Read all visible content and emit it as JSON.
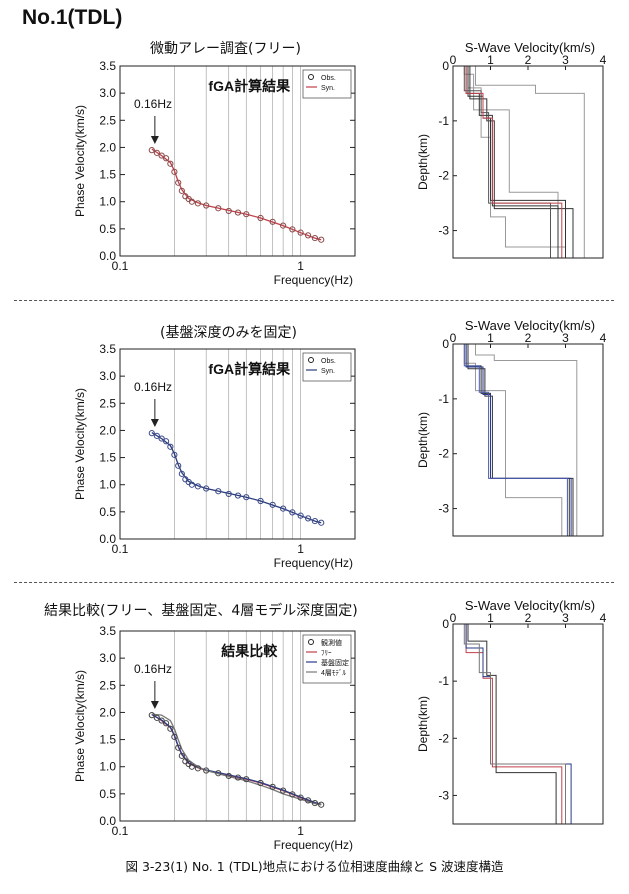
{
  "page": {
    "title": "No.1(TDL)",
    "section_titles": [
      "微動アレー調査(フリー)",
      "(基盤深度のみを固定)",
      "結果比較(フリー、基盤固定、4層モデル深度固定)"
    ],
    "caption": "図 3-23(1) No. 1 (TDL)地点における位相速度曲線と S 波速度構造"
  },
  "chart_data": [
    {
      "type": "scatter",
      "title": "fGA計算結果",
      "xlabel": "Frequency(Hz)",
      "ylabel": "Phase Velocity(km/s)",
      "xscale": "log",
      "xlim": [
        0.1,
        2
      ],
      "ylim": [
        0,
        3.5
      ],
      "xticks": [
        "0.1",
        "1"
      ],
      "yticks": [
        "0.0",
        "0.5",
        "1.0",
        "1.5",
        "2.0",
        "2.5",
        "3.0",
        "3.5"
      ],
      "grid": "vertical",
      "legend": {
        "position": "top-right",
        "entries": [
          "Obs.",
          "Syn."
        ]
      },
      "annotation": {
        "text": "0.16Hz",
        "x": 0.16
      },
      "series": [
        {
          "name": "Obs.",
          "style": "circle",
          "color": "#8a4a4a",
          "x": [
            0.15,
            0.16,
            0.17,
            0.18,
            0.19,
            0.2,
            0.21,
            0.22,
            0.23,
            0.24,
            0.25,
            0.27,
            0.3,
            0.35,
            0.4,
            0.45,
            0.5,
            0.6,
            0.7,
            0.8,
            0.9,
            1.0,
            1.1,
            1.2,
            1.3
          ],
          "y": [
            1.95,
            1.9,
            1.85,
            1.8,
            1.7,
            1.55,
            1.35,
            1.2,
            1.1,
            1.05,
            1.0,
            0.97,
            0.93,
            0.88,
            0.83,
            0.8,
            0.77,
            0.7,
            0.63,
            0.56,
            0.49,
            0.43,
            0.38,
            0.33,
            0.3
          ]
        },
        {
          "name": "Syn.",
          "style": "line",
          "color": "#c0404a",
          "x": [
            0.15,
            0.17,
            0.19,
            0.2,
            0.21,
            0.22,
            0.24,
            0.27,
            0.3,
            0.4,
            0.5,
            0.6,
            0.8,
            1.0,
            1.2,
            1.3
          ],
          "y": [
            1.97,
            1.85,
            1.72,
            1.57,
            1.37,
            1.22,
            1.06,
            0.98,
            0.93,
            0.84,
            0.77,
            0.7,
            0.56,
            0.43,
            0.33,
            0.3
          ]
        }
      ]
    },
    {
      "type": "line",
      "title": "S-Wave Velocity(km/s)",
      "ylabel": "Depth(km)",
      "xlim": [
        0,
        4
      ],
      "ylim": [
        -3.5,
        0
      ],
      "xticks": [
        "0",
        "1",
        "2",
        "3",
        "4"
      ],
      "yticks": [
        "0",
        "-1",
        "-2",
        "-3"
      ],
      "series": [
        {
          "color": "#999999",
          "x": [
            0.4,
            0.4,
            0.75,
            0.75,
            1.0,
            1.0,
            1.4,
            1.4,
            3.0,
            3.0
          ],
          "y": [
            0,
            -0.4,
            -0.4,
            -1.3,
            -1.3,
            -2.75,
            -2.75,
            -3.3,
            -3.3,
            -3.5
          ]
        },
        {
          "color": "#999999",
          "x": [
            0.6,
            0.6,
            2.2,
            2.2,
            3.5,
            3.5
          ],
          "y": [
            0,
            -0.35,
            -0.35,
            -0.5,
            -0.5,
            -3.5
          ]
        },
        {
          "color": "#999999",
          "x": [
            0.3,
            0.3,
            0.55,
            0.55,
            1.5,
            1.5,
            2.8,
            2.8
          ],
          "y": [
            0,
            -0.15,
            -0.15,
            -0.8,
            -0.8,
            -2.3,
            -2.3,
            -3.5
          ]
        },
        {
          "color": "#333333",
          "x": [
            0.35,
            0.35,
            0.7,
            0.7,
            1.05,
            1.05,
            2.8,
            2.8
          ],
          "y": [
            0,
            -0.5,
            -0.5,
            -0.9,
            -0.9,
            -2.55,
            -2.55,
            -3.5
          ]
        },
        {
          "color": "#333333",
          "x": [
            0.4,
            0.4,
            0.8,
            0.8,
            1.0,
            1.0,
            3.0,
            3.0
          ],
          "y": [
            0,
            -0.55,
            -0.55,
            -0.95,
            -0.95,
            -2.45,
            -2.45,
            -3.5
          ]
        },
        {
          "color": "#333333",
          "x": [
            0.45,
            0.45,
            0.9,
            0.9,
            1.1,
            1.1,
            3.2,
            3.2
          ],
          "y": [
            0,
            -0.6,
            -0.6,
            -1.0,
            -1.0,
            -2.6,
            -2.6,
            -3.5
          ]
        },
        {
          "color": "#555555",
          "x": [
            0.3,
            0.3,
            0.75,
            0.75,
            0.95,
            0.95,
            2.6,
            2.6
          ],
          "y": [
            0,
            -0.45,
            -0.45,
            -0.85,
            -0.85,
            -2.5,
            -2.5,
            -3.5
          ]
        },
        {
          "color": "#c0404a",
          "x": [
            0.35,
            0.35,
            0.8,
            0.8,
            1.05,
            1.05,
            2.9,
            2.9
          ],
          "y": [
            0,
            -0.5,
            -0.5,
            -0.95,
            -0.95,
            -2.5,
            -2.5,
            -3.5
          ]
        }
      ]
    },
    {
      "type": "scatter",
      "title": "fGA計算結果",
      "xlabel": "Frequency(Hz)",
      "ylabel": "Phase Velocity(km/s)",
      "xscale": "log",
      "xlim": [
        0.1,
        2
      ],
      "ylim": [
        0,
        3.5
      ],
      "xticks": [
        "0.1",
        "1"
      ],
      "yticks": [
        "0.0",
        "0.5",
        "1.0",
        "1.5",
        "2.0",
        "2.5",
        "3.0",
        "3.5"
      ],
      "grid": "vertical",
      "legend": {
        "position": "top-right",
        "entries": [
          "Obs.",
          "Syn."
        ]
      },
      "annotation": {
        "text": "0.16Hz",
        "x": 0.16
      },
      "series": [
        {
          "name": "Obs.",
          "style": "circle",
          "color": "#3a4a8a",
          "x": [
            0.15,
            0.16,
            0.17,
            0.18,
            0.19,
            0.2,
            0.21,
            0.22,
            0.23,
            0.24,
            0.25,
            0.27,
            0.3,
            0.35,
            0.4,
            0.45,
            0.5,
            0.6,
            0.7,
            0.8,
            0.9,
            1.0,
            1.1,
            1.2,
            1.3
          ],
          "y": [
            1.95,
            1.9,
            1.85,
            1.8,
            1.7,
            1.55,
            1.35,
            1.2,
            1.1,
            1.05,
            1.0,
            0.97,
            0.93,
            0.88,
            0.83,
            0.8,
            0.77,
            0.7,
            0.63,
            0.56,
            0.49,
            0.43,
            0.38,
            0.33,
            0.3
          ]
        },
        {
          "name": "Syn.",
          "style": "line",
          "color": "#2a3a7a",
          "x": [
            0.15,
            0.17,
            0.19,
            0.2,
            0.21,
            0.22,
            0.24,
            0.27,
            0.3,
            0.4,
            0.5,
            0.6,
            0.8,
            1.0,
            1.2,
            1.3
          ],
          "y": [
            1.96,
            1.85,
            1.72,
            1.57,
            1.37,
            1.22,
            1.06,
            0.98,
            0.93,
            0.84,
            0.77,
            0.7,
            0.56,
            0.43,
            0.33,
            0.3
          ]
        }
      ]
    },
    {
      "type": "line",
      "title": "S-Wave Velocity(km/s)",
      "ylabel": "Depth(km)",
      "xlim": [
        0,
        4
      ],
      "ylim": [
        -3.5,
        0
      ],
      "xticks": [
        "0",
        "1",
        "2",
        "3",
        "4"
      ],
      "yticks": [
        "0",
        "-1",
        "-2",
        "-3"
      ],
      "series": [
        {
          "color": "#999999",
          "x": [
            0.3,
            0.3,
            0.6,
            0.6,
            1.4,
            1.4,
            2.9,
            2.9
          ],
          "y": [
            0,
            -0.35,
            -0.35,
            -0.85,
            -0.85,
            -2.8,
            -2.8,
            -3.5
          ]
        },
        {
          "color": "#999999",
          "x": [
            0.6,
            0.6,
            1.1,
            1.1,
            3.3,
            3.3
          ],
          "y": [
            0,
            -0.2,
            -0.2,
            -0.3,
            -0.3,
            -3.5
          ]
        },
        {
          "color": "#333333",
          "x": [
            0.35,
            0.35,
            0.75,
            0.75,
            1.0,
            1.0,
            3.1,
            3.1
          ],
          "y": [
            0,
            -0.4,
            -0.4,
            -0.9,
            -0.9,
            -2.45,
            -2.45,
            -3.5
          ]
        },
        {
          "color": "#333333",
          "x": [
            0.4,
            0.4,
            0.85,
            0.85,
            1.05,
            1.05,
            3.2,
            3.2
          ],
          "y": [
            0,
            -0.45,
            -0.45,
            -0.95,
            -0.95,
            -2.45,
            -2.45,
            -3.5
          ]
        },
        {
          "color": "#2a3a8a",
          "x": [
            0.35,
            0.35,
            0.8,
            0.8,
            1.0,
            1.0,
            3.15,
            3.15
          ],
          "y": [
            0,
            -0.42,
            -0.42,
            -0.92,
            -0.92,
            -2.45,
            -2.45,
            -3.5
          ]
        },
        {
          "color": "#4a5aaa",
          "x": [
            0.3,
            0.3,
            0.7,
            0.7,
            0.95,
            0.95,
            3.05,
            3.05
          ],
          "y": [
            0,
            -0.4,
            -0.4,
            -0.88,
            -0.88,
            -2.45,
            -2.45,
            -3.5
          ]
        }
      ]
    },
    {
      "type": "scatter",
      "title": "結果比較",
      "xlabel": "Frequency(Hz)",
      "ylabel": "Phase Velocity(km/s)",
      "xscale": "log",
      "xlim": [
        0.1,
        2
      ],
      "ylim": [
        0,
        3.5
      ],
      "xticks": [
        "0.1",
        "1"
      ],
      "yticks": [
        "0.0",
        "0.5",
        "1.0",
        "1.5",
        "2.0",
        "2.5",
        "3.0",
        "3.5"
      ],
      "grid": "vertical",
      "legend": {
        "position": "top-right",
        "entries": [
          "観測値",
          "ﾌﾘｰ",
          "基盤固定",
          "4層ﾓﾃﾞﾙ"
        ]
      },
      "annotation": {
        "text": "0.16Hz",
        "x": 0.16
      },
      "series": [
        {
          "name": "観測値",
          "style": "circle",
          "color": "#444444",
          "x": [
            0.15,
            0.16,
            0.17,
            0.18,
            0.19,
            0.2,
            0.21,
            0.22,
            0.23,
            0.24,
            0.25,
            0.27,
            0.3,
            0.35,
            0.4,
            0.45,
            0.5,
            0.6,
            0.7,
            0.8,
            0.9,
            1.0,
            1.1,
            1.2,
            1.3
          ],
          "y": [
            1.95,
            1.9,
            1.85,
            1.8,
            1.7,
            1.55,
            1.35,
            1.2,
            1.1,
            1.05,
            1.0,
            0.97,
            0.93,
            0.88,
            0.83,
            0.8,
            0.77,
            0.7,
            0.63,
            0.56,
            0.49,
            0.43,
            0.38,
            0.33,
            0.3
          ]
        },
        {
          "name": "ﾌﾘｰ",
          "style": "line",
          "color": "#c0404a",
          "x": [
            0.15,
            0.17,
            0.19,
            0.2,
            0.21,
            0.22,
            0.24,
            0.27,
            0.3,
            0.4,
            0.5,
            0.6,
            0.8,
            1.0,
            1.2,
            1.3
          ],
          "y": [
            1.97,
            1.85,
            1.72,
            1.57,
            1.37,
            1.22,
            1.06,
            0.98,
            0.93,
            0.84,
            0.77,
            0.7,
            0.56,
            0.43,
            0.33,
            0.3
          ]
        },
        {
          "name": "基盤固定",
          "style": "line",
          "color": "#2a3a8a",
          "x": [
            0.15,
            0.17,
            0.19,
            0.2,
            0.21,
            0.22,
            0.24,
            0.27,
            0.3,
            0.4,
            0.5,
            0.6,
            0.8,
            1.0,
            1.2,
            1.3
          ],
          "y": [
            1.96,
            1.86,
            1.73,
            1.58,
            1.38,
            1.23,
            1.07,
            0.99,
            0.94,
            0.85,
            0.78,
            0.71,
            0.57,
            0.44,
            0.34,
            0.31
          ]
        },
        {
          "name": "4層ﾓﾃﾞﾙ",
          "style": "line",
          "color": "#777777",
          "x": [
            0.15,
            0.17,
            0.19,
            0.2,
            0.21,
            0.22,
            0.24,
            0.27,
            0.3,
            0.4,
            0.5,
            0.6,
            0.7,
            0.8,
            1.0,
            1.2,
            1.3
          ],
          "y": [
            1.97,
            1.95,
            1.85,
            1.7,
            1.5,
            1.32,
            1.12,
            1.0,
            0.93,
            0.82,
            0.74,
            0.66,
            0.58,
            0.5,
            0.4,
            0.32,
            0.3
          ]
        }
      ]
    },
    {
      "type": "line",
      "title": "S-Wave Velocity(km/s)",
      "ylabel": "Depth(km)",
      "xlim": [
        0,
        4
      ],
      "ylim": [
        -3.5,
        0
      ],
      "xticks": [
        "0",
        "1",
        "2",
        "3",
        "4"
      ],
      "yticks": [
        "0",
        "-1",
        "-2",
        "-3"
      ],
      "series": [
        {
          "color": "#c0404a",
          "x": [
            0.35,
            0.35,
            0.8,
            0.8,
            1.05,
            1.05,
            2.9,
            2.9
          ],
          "y": [
            0,
            -0.5,
            -0.5,
            -0.95,
            -0.95,
            -2.5,
            -2.5,
            -3.5
          ]
        },
        {
          "color": "#2a3a8a",
          "x": [
            0.35,
            0.35,
            0.8,
            0.8,
            1.0,
            1.0,
            3.15,
            3.15
          ],
          "y": [
            0,
            -0.42,
            -0.42,
            -0.92,
            -0.92,
            -2.45,
            -2.45,
            -3.5
          ]
        },
        {
          "color": "#333333",
          "x": [
            0.4,
            0.4,
            0.9,
            0.9,
            1.15,
            1.15,
            2.75,
            2.75
          ],
          "y": [
            0,
            -0.3,
            -0.3,
            -0.9,
            -0.9,
            -2.6,
            -2.6,
            -3.5
          ]
        },
        {
          "color": "#777777",
          "x": [
            0.3,
            0.3,
            0.7,
            0.7,
            1.0,
            1.0,
            3.0,
            3.0
          ],
          "y": [
            0,
            -0.35,
            -0.35,
            -0.85,
            -0.85,
            -2.45,
            -2.45,
            -3.5
          ]
        }
      ]
    }
  ]
}
